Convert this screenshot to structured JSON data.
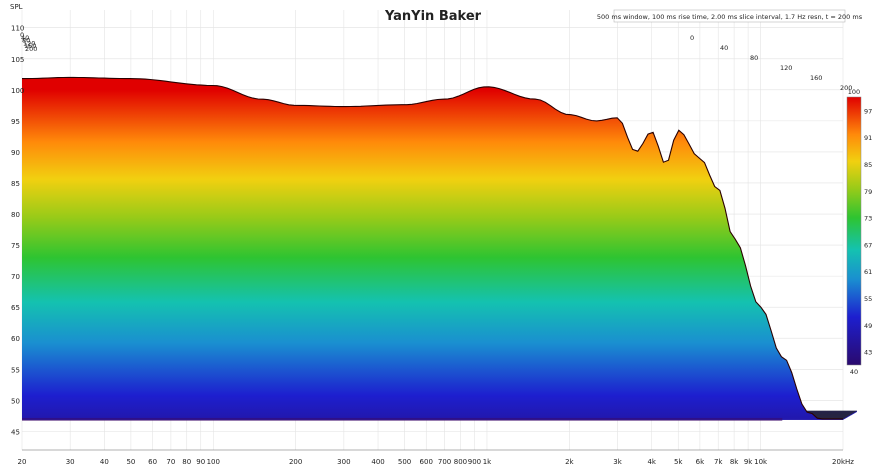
{
  "window_title": "YanYin Baker",
  "info_label": "500 ms window, 100 ms rise time, 2.00 ms slice interval, 1.7 Hz resn, t = 200 ms",
  "chart_data": {
    "type": "area",
    "subtype": "waterfall (cumulative spectral decay)",
    "title": "YanYin Baker",
    "ylabel": "SPL",
    "y_axis": {
      "min": 42,
      "max": 112,
      "ticks": [
        45,
        50,
        55,
        60,
        65,
        70,
        75,
        80,
        85,
        90,
        95,
        100,
        105,
        110
      ]
    },
    "x_axis": {
      "scale": "log",
      "min_hz": 20,
      "max_hz": 20000,
      "ticks": [
        {
          "hz": 20,
          "label": "20"
        },
        {
          "hz": 30,
          "label": "30"
        },
        {
          "hz": 40,
          "label": "40"
        },
        {
          "hz": 50,
          "label": "50"
        },
        {
          "hz": 60,
          "label": "60"
        },
        {
          "hz": 70,
          "label": "70"
        },
        {
          "hz": 80,
          "label": "80"
        },
        {
          "hz": 90,
          "label": "90"
        },
        {
          "hz": 100,
          "label": "100"
        },
        {
          "hz": 200,
          "label": "200"
        },
        {
          "hz": 300,
          "label": "300"
        },
        {
          "hz": 400,
          "label": "400"
        },
        {
          "hz": 500,
          "label": "500"
        },
        {
          "hz": 600,
          "label": "600"
        },
        {
          "hz": 700,
          "label": "700"
        },
        {
          "hz": 800,
          "label": "800"
        },
        {
          "hz": 900,
          "label": "900"
        },
        {
          "hz": 1000,
          "label": "1k"
        },
        {
          "hz": 2000,
          "label": "2k"
        },
        {
          "hz": 3000,
          "label": "3k"
        },
        {
          "hz": 4000,
          "label": "4k"
        },
        {
          "hz": 5000,
          "label": "5k"
        },
        {
          "hz": 6000,
          "label": "6k"
        },
        {
          "hz": 7000,
          "label": "7k"
        },
        {
          "hz": 8000,
          "label": "8k"
        },
        {
          "hz": 9000,
          "label": "9k"
        },
        {
          "hz": 10000,
          "label": "10k"
        },
        {
          "hz": 20000,
          "label": "20kHz"
        }
      ]
    },
    "time_axis": {
      "labels_ms": [
        "0",
        "40",
        "80",
        "120",
        "160",
        "200"
      ],
      "max_ms": 200
    },
    "colorbar": {
      "min": 40,
      "max": 100,
      "ticks": [
        43,
        49,
        55,
        61,
        67,
        73,
        79,
        85,
        91,
        97
      ]
    },
    "first_slice": {
      "freq_hz": [
        20,
        30,
        50,
        100,
        150,
        200,
        300,
        500,
        700,
        1000,
        1500,
        2000,
        2500,
        3000,
        3500,
        4000,
        4500,
        5000,
        6000,
        7000,
        8000,
        10000,
        12000,
        15000,
        20000
      ],
      "spl_db": [
        101.8,
        102,
        101.8,
        100.7,
        98.5,
        97.5,
        97.3,
        97.6,
        98.5,
        100.5,
        98.5,
        96,
        95,
        95.5,
        90,
        93.3,
        88,
        93.5,
        89,
        84,
        76,
        65,
        57,
        48,
        42
      ]
    },
    "floor_spl_db": 47,
    "slices": 50,
    "decay_at_200ms_db": 47
  }
}
